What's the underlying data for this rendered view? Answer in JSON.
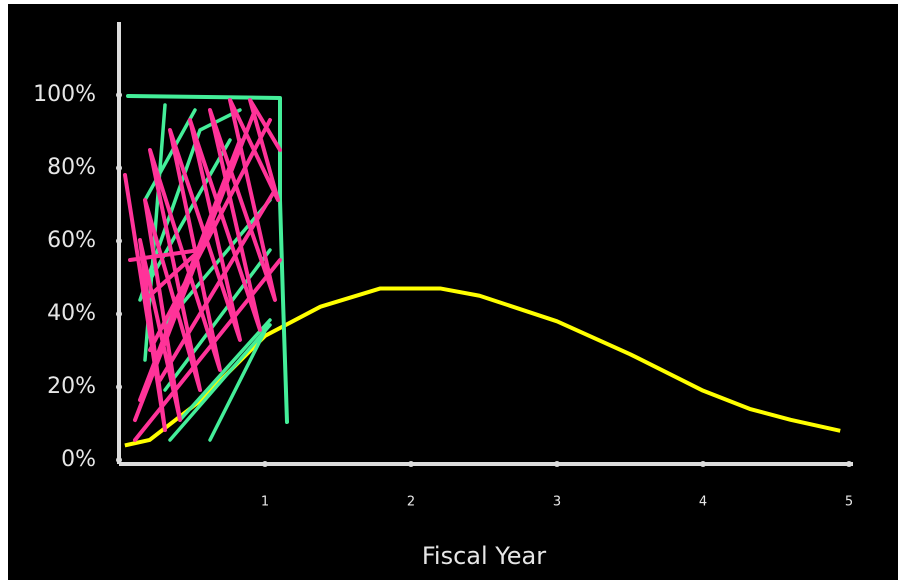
{
  "chart_data": {
    "type": "line",
    "x_label": "Fiscal Year",
    "series": [
      {
        "color": "#ffff00",
        "x": [
          0.04,
          0.21,
          0.55,
          1,
          1.38,
          1.79,
          2.2,
          2.47,
          3,
          3.5,
          4,
          4.32,
          4.6,
          4.94
        ],
        "values": [
          4,
          5.5,
          16,
          34,
          42,
          47,
          47,
          45,
          38,
          29,
          19,
          14,
          11,
          8
        ]
      }
    ],
    "xlim": [
      0,
      5
    ],
    "ylim": [
      0,
      120
    ],
    "xticks": [
      1,
      2,
      3,
      4,
      5
    ],
    "yticks": [
      {
        "value": 0,
        "label": "0%"
      },
      {
        "value": 20,
        "label": "20%"
      },
      {
        "value": 40,
        "label": "40%"
      },
      {
        "value": 60,
        "label": "60%"
      },
      {
        "value": 80,
        "label": "80%"
      },
      {
        "value": 100,
        "label": "100%"
      }
    ]
  }
}
